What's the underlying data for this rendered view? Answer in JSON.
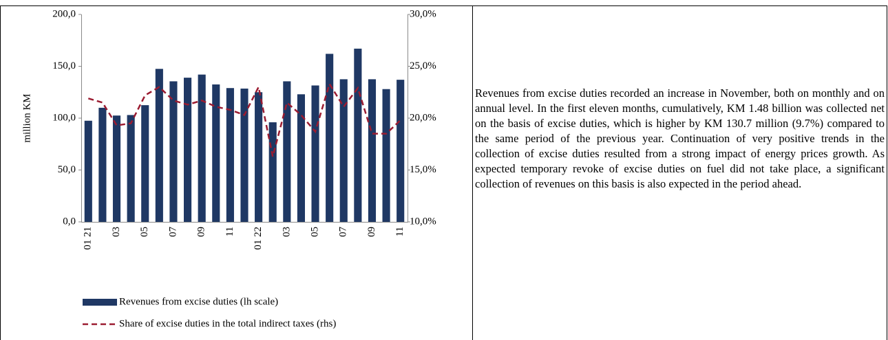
{
  "chart_data": {
    "type": "bar",
    "categories": [
      "01 21",
      null,
      "03",
      null,
      "05",
      null,
      "07",
      null,
      "09",
      null,
      "11",
      null,
      "01 22",
      null,
      "03",
      null,
      "05",
      null,
      "07",
      null,
      "09",
      null,
      "11"
    ],
    "y_label": "million KM",
    "series": [
      {
        "name": "Revenues from excise duties (lh scale)",
        "type": "bar",
        "color": "#1f3864",
        "values": [
          97.5,
          110,
          102.5,
          103,
          112.5,
          147.5,
          135.5,
          139,
          142,
          132.5,
          129,
          128.5,
          125,
          96,
          135.5,
          123,
          131.5,
          162,
          137.5,
          167,
          137.5,
          128,
          137
        ]
      },
      {
        "name": "Share of excise duties in the total indirect taxes (rhs)",
        "type": "line",
        "axis": "y2",
        "color": "#9b1c31",
        "dashed": true,
        "values": [
          21.9,
          21.5,
          19.3,
          19.5,
          22.2,
          23.0,
          21.7,
          21.3,
          21.7,
          21.1,
          20.8,
          20.3,
          23.0,
          16.3,
          21.5,
          20.3,
          18.7,
          23.3,
          21.1,
          22.9,
          18.5,
          18.5,
          19.8
        ]
      }
    ],
    "ylim": [
      0,
      200
    ],
    "yticks": [
      {
        "value": 0,
        "label": "0,0"
      },
      {
        "value": 50,
        "label": "50,0"
      },
      {
        "value": 100,
        "label": "100,0"
      },
      {
        "value": 150,
        "label": "150,0"
      },
      {
        "value": 200,
        "label": "200,0"
      }
    ],
    "y2lim": [
      10,
      30
    ],
    "y2ticks": [
      {
        "value": 10,
        "label": "10,0%"
      },
      {
        "value": 15,
        "label": "15,0%"
      },
      {
        "value": 20,
        "label": "20,0%"
      },
      {
        "value": 25,
        "label": "25,0%"
      },
      {
        "value": 30,
        "label": "30,0%"
      }
    ]
  },
  "text": "Revenues from excise duties recorded an increase in November, both on monthly and on annual level. In the first eleven months, cumulatively, KM  1.48 billion was collected net on the basis of excise duties, which is higher by KM 130.7 million (9.7%) compared to the same period of the previous year. Continuation of very positive trends in the collection of excise duties resulted from a strong impact of energy prices growth. As expected temporary revoke of excise duties on fuel did not take place, a significant collection of revenues on this basis is also expected in the period ahead."
}
